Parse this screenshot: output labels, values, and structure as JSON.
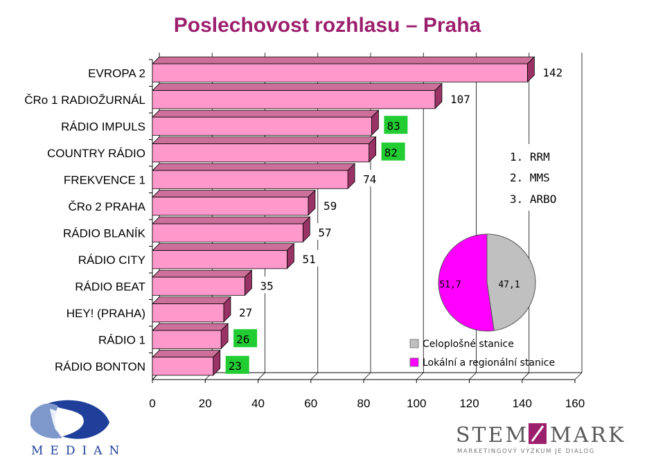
{
  "title": "Poslechovost rozhlasu – Praha",
  "chart_data": [
    {
      "type": "bar",
      "orientation": "horizontal",
      "categories": [
        "EVROPA 2",
        "ČRo 1 RADIOŽURNÁL",
        "RÁDIO IMPULS",
        "COUNTRY RÁDIO",
        "FREKVENCE 1",
        "ČRo 2 PRAHA",
        "RÁDIO BLANÍK",
        "RÁDIO CITY",
        "RÁDIO BEAT",
        "HEY! (PRAHA)",
        "RÁDIO 1",
        "RÁDIO BONTON"
      ],
      "values": [
        142,
        107,
        83,
        82,
        74,
        59,
        57,
        51,
        35,
        27,
        26,
        23
      ],
      "value_labels": [
        "142",
        "107",
        "83",
        "82",
        "74",
        "59",
        "57",
        "51",
        "35",
        "27",
        "26",
        "23"
      ],
      "highlighted_labels": [
        "83",
        "82",
        "26",
        "23"
      ],
      "highlight_colors": {
        "83": "#22cc33",
        "82": "#22cc33",
        "26": "#22cc33",
        "23": "#22cc33"
      },
      "xlim": [
        0,
        160
      ],
      "xticks": [
        "0",
        "20",
        "40",
        "60",
        "80",
        "100",
        "120",
        "140",
        "160"
      ],
      "bar_color": "#ff99cc",
      "grid": true,
      "style": "3d"
    },
    {
      "type": "pie",
      "labels": [
        "Celoplošné stanice",
        "Lokální a regionální stanice"
      ],
      "values": [
        47.1,
        51.7
      ],
      "value_labels": [
        "47,1",
        "51,7"
      ],
      "colors": [
        "#c0c0c0",
        "#ff00ff"
      ],
      "legend": "bottom"
    }
  ],
  "ranking": [
    "1. RRM",
    "2. MMS",
    "3. ARBO"
  ],
  "logos": {
    "median": "MEDIAN",
    "stem_left": "STEM",
    "stem_right": "MARK",
    "stem_tagline": "MARKETINGOVÝ VÝZKUM JE DIALOG"
  },
  "colors": {
    "title": "#9c1f6d",
    "bar": "#ff99cc",
    "median_blue": "#1f3f9a"
  }
}
